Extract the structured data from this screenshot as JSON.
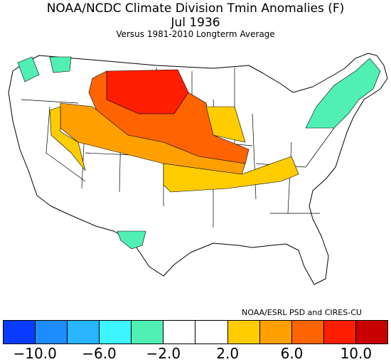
{
  "title": "NOAA/NCDC Climate Division Tmin Anomalies (F)",
  "date": "Jul 1936",
  "subtitle": "Versus 1981-2010 Longterm Average",
  "credit": "NOAA/ESRL PSD and CIRES-CU",
  "colorbar": {
    "colors": [
      "#0a3cff",
      "#1e8cff",
      "#28b4ff",
      "#3cf5ff",
      "#50f0b4",
      "#ffffff",
      "#ffffff",
      "#ffcc00",
      "#ffa000",
      "#ff6400",
      "#ff1e00",
      "#c80000"
    ],
    "tick_labels": [
      "−10.0",
      "−6.0",
      "−2.0",
      "2.0",
      "6.0",
      "10.0"
    ]
  }
}
